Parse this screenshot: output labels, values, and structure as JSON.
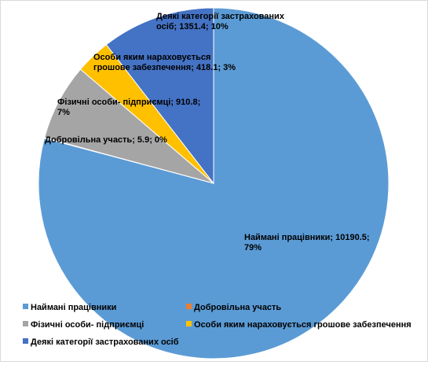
{
  "chart_data": {
    "type": "pie",
    "title": "",
    "slices": [
      {
        "name": "Наймані працівники",
        "value": 10190.5,
        "percent": "79%",
        "color": "#5b9bd5",
        "label_lines": [
          "Наймані працівники; 10190.5;",
          "79%"
        ]
      },
      {
        "name": "Добровільна участь",
        "value": 5.9,
        "percent": "0%",
        "color": "#ed7d31",
        "label_lines": [
          "Добровільна участь; 5.9; 0%"
        ]
      },
      {
        "name": "Фізичні особи- підприємці",
        "value": 910.8,
        "percent": "7%",
        "color": "#a5a5a5",
        "label_lines": [
          "Фізичні особи- підприємці; 910.8;",
          "7%"
        ]
      },
      {
        "name": "Особи яким нараховується грошове забезпечення",
        "value": 418.1,
        "percent": "3%",
        "color": "#ffc000",
        "label_lines": [
          "Особи яким нараховується",
          "грошове забезпечення; 418.1; 3%"
        ]
      },
      {
        "name": "Деякі категорії застрахованих осіб",
        "value": 1351.4,
        "percent": "10%",
        "color": "#4472c4",
        "label_lines": [
          "Деякі категорії застрахованих",
          "осіб; 1351.4; 10%"
        ]
      }
    ],
    "legend_position": "bottom"
  }
}
